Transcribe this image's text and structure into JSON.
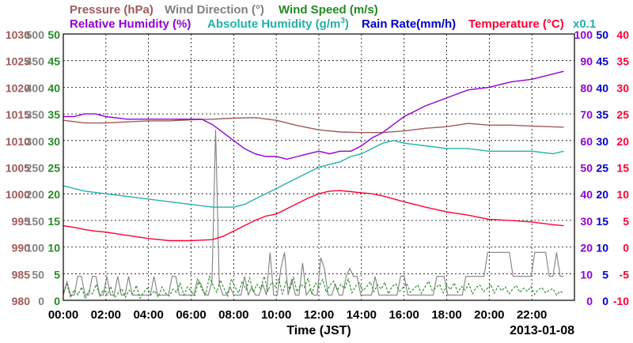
{
  "chart_data": {
    "type": "line",
    "date": "2013-01-08",
    "xlabel": "Time (JST)",
    "x_ticks": [
      "00:00",
      "02:00",
      "04:00",
      "06:00",
      "08:00",
      "10:00",
      "12:00",
      "14:00",
      "16:00",
      "18:00",
      "20:00",
      "22:00"
    ],
    "xlim_hours": [
      0,
      24
    ],
    "grid": true,
    "legend_row1": [
      {
        "key": "pressure",
        "label": "Pressure (hPa)",
        "color": "#a05a5a"
      },
      {
        "key": "wind_dir",
        "label": "Wind Direction (°)",
        "color": "#808080"
      },
      {
        "key": "wind_speed",
        "label": "Wind Speed (m/s)",
        "color": "#228b22"
      }
    ],
    "legend_row2": [
      {
        "key": "rh",
        "label": "Relative Humidity (%)",
        "color": "#9400d3"
      },
      {
        "key": "abs_hum",
        "label": "Absolute Humidity (g/m",
        "sup": "3",
        "suffix": ")",
        "color": "#20b2aa"
      },
      {
        "key": "rain",
        "label": "Rain Rate(mm/h)",
        "color": "#0000cd"
      },
      {
        "key": "temp",
        "label": "Temperature (°C)",
        "color": "#ff0033"
      }
    ],
    "abs_hum_scale_note": "x0.1",
    "axes": {
      "pressure": {
        "ticks": [
          "1030",
          "1025",
          "1020",
          "1015",
          "1010",
          "1005",
          "1000",
          "995",
          "990",
          "985",
          "980"
        ],
        "range": [
          980,
          1030
        ]
      },
      "wind_dir": {
        "ticks": [
          "500",
          "450",
          "400",
          "350",
          "300",
          "250",
          "200",
          "150",
          "100",
          "50",
          "0"
        ],
        "range": [
          0,
          500
        ]
      },
      "wind_speed": {
        "ticks": [
          "50",
          "45",
          "40",
          "35",
          "30",
          "25",
          "20",
          "15",
          "10",
          "5",
          "0"
        ],
        "range": [
          0,
          50
        ]
      },
      "rh": {
        "ticks": [
          "100",
          "90",
          "80",
          "70",
          "60",
          "50",
          "40",
          "30",
          "20",
          "10",
          "0"
        ],
        "range": [
          0,
          100
        ]
      },
      "rain": {
        "ticks": [
          "50",
          "45",
          "40",
          "35",
          "30",
          "25",
          "20",
          "15",
          "10",
          "5",
          "0"
        ],
        "range": [
          0,
          50
        ]
      },
      "temp": {
        "ticks": [
          "40",
          "35",
          "30",
          "25",
          "20",
          "15",
          "10",
          "5",
          "0",
          "-5",
          "-10"
        ],
        "range": [
          -10,
          40
        ]
      }
    },
    "series": [
      {
        "name": "Pressure (hPa)",
        "axis": "pressure",
        "color": "#a05a5a",
        "x": [
          0,
          1,
          2,
          3,
          4,
          5,
          6,
          7,
          8,
          9,
          10,
          11,
          12,
          13,
          14,
          15,
          16,
          17,
          18,
          19,
          20,
          21,
          22,
          23.5
        ],
        "y": [
          1013.8,
          1013.3,
          1013.3,
          1013.5,
          1013.7,
          1013.7,
          1013.9,
          1014.0,
          1014.2,
          1014.3,
          1013.8,
          1012.8,
          1012.0,
          1011.6,
          1011.5,
          1011.5,
          1011.8,
          1012.3,
          1012.6,
          1013.2,
          1012.9,
          1012.9,
          1012.7,
          1012.5
        ]
      },
      {
        "name": "Relative Humidity (%)",
        "axis": "rh",
        "color": "#9400d3",
        "x": [
          0,
          0.5,
          1,
          1.5,
          2,
          3,
          4,
          5,
          6,
          6.5,
          7,
          7.5,
          8,
          8.5,
          9,
          9.5,
          10,
          10.5,
          11,
          11.5,
          12,
          12.5,
          13,
          13.5,
          14,
          14.5,
          15,
          15.5,
          16,
          17,
          18,
          19,
          20,
          21,
          22,
          23,
          23.5
        ],
        "y": [
          69,
          69,
          70,
          70,
          69,
          68,
          68,
          68,
          68,
          68,
          66,
          63,
          60,
          57,
          55,
          54,
          54,
          53,
          54,
          55,
          56,
          55,
          56,
          56,
          58,
          61,
          63,
          66,
          69,
          73,
          76,
          79,
          80,
          82,
          83,
          85,
          86
        ]
      },
      {
        "name": "Absolute Humidity (g/m3) x0.1",
        "axis": "rh",
        "color": "#20b2aa",
        "x": [
          0,
          0.5,
          1,
          2,
          3,
          4,
          5,
          6,
          7,
          8,
          8.5,
          9,
          9.5,
          10,
          10.5,
          11,
          11.5,
          12,
          12.5,
          13,
          13.5,
          14,
          14.5,
          15,
          15.5,
          16,
          17,
          18,
          19,
          20,
          21,
          22,
          23,
          23.5
        ],
        "y": [
          43,
          42,
          41,
          40,
          39,
          38,
          37,
          36,
          35,
          35,
          36,
          38,
          40,
          42,
          44,
          46,
          48,
          50,
          51,
          52,
          54,
          55,
          57,
          59,
          60,
          59,
          58,
          57,
          57,
          56,
          56,
          56,
          55,
          56
        ]
      },
      {
        "name": "Temperature (°C)",
        "axis": "temp",
        "color": "#ff0033",
        "x": [
          0,
          0.5,
          1,
          1.5,
          2,
          3,
          4,
          5,
          6,
          7,
          7.5,
          8,
          8.5,
          9,
          9.5,
          10,
          10.5,
          11,
          11.5,
          12,
          12.5,
          13,
          13.5,
          14,
          14.5,
          15,
          16,
          17,
          18,
          19,
          20,
          21,
          22,
          23,
          23.5
        ],
        "y": [
          4,
          3.7,
          3.3,
          3,
          2.8,
          2.2,
          1.6,
          1.2,
          1.2,
          1.4,
          2,
          3,
          4,
          5,
          5.8,
          6.2,
          7.2,
          8.2,
          9.2,
          10,
          10.5,
          10.6,
          10.4,
          10.2,
          10,
          9.6,
          8.5,
          7.5,
          6.6,
          6,
          5.2,
          5,
          4.7,
          4.2,
          4
        ]
      }
    ],
    "spiky_series": [
      {
        "name": "Wind Direction (°)",
        "axis": "wind_dir",
        "color": "#808080",
        "x_start": 0,
        "x_end": 23.5,
        "y": [
          10,
          35,
          10,
          10,
          45,
          45,
          10,
          10,
          45,
          45,
          10,
          10,
          45,
          10,
          10,
          45,
          10,
          10,
          45,
          10,
          10,
          10,
          10,
          10,
          10,
          45,
          10,
          10,
          10,
          10,
          45,
          45,
          10,
          10,
          10,
          10,
          10,
          40,
          30,
          10,
          10,
          35,
          320,
          30,
          10,
          10,
          25,
          10,
          10,
          10,
          45,
          10,
          25,
          10,
          10,
          30,
          10,
          90,
          10,
          10,
          60,
          90,
          10,
          40,
          10,
          10,
          70,
          10,
          20,
          10,
          10,
          80,
          60,
          10,
          10,
          30,
          10,
          10,
          45,
          60,
          45,
          45,
          10,
          10,
          10,
          10,
          45,
          10,
          10,
          10,
          10,
          10,
          10,
          45,
          45,
          10,
          10,
          10,
          10,
          10,
          10,
          10,
          10,
          45,
          45,
          45,
          10,
          10,
          10,
          10,
          10,
          45,
          45,
          45,
          45,
          45,
          45,
          90,
          90,
          90,
          90,
          90,
          90,
          90,
          45,
          45,
          45,
          45,
          45,
          45,
          90,
          90,
          90,
          90,
          45,
          45,
          90,
          45,
          45
        ]
      },
      {
        "name": "Wind Speed (m/s)",
        "axis": "wind_speed",
        "color": "#228b22",
        "style": "dashed",
        "x_start": 0,
        "x_end": 23.5,
        "y": [
          1.5,
          3,
          0.5,
          2,
          1,
          2.5,
          0.3,
          1.8,
          1.2,
          3,
          0.8,
          2,
          1,
          2.6,
          0.5,
          1.4,
          2.2,
          0.6,
          1.9,
          1.2,
          2.8,
          0.4,
          1.5,
          2.3,
          1,
          1.8,
          0.6,
          2.5,
          1.3,
          0.8,
          2.1,
          1.5,
          3.2,
          1,
          2.5,
          1.7,
          0.9,
          3.5,
          2,
          1.2,
          4.5,
          2.8,
          1.5,
          3.8,
          2.2,
          0.8,
          4,
          2.5,
          1.4,
          3.6,
          2,
          4.2,
          1.5,
          3,
          2.2,
          4.5,
          1.8,
          3.4,
          2.6,
          4,
          1.2,
          3.5,
          2,
          4.3,
          1.6,
          3,
          2.4,
          4.1,
          1.3,
          3.2,
          2.5,
          3.9,
          1.5,
          2.8,
          3.6,
          1.9,
          3,
          2.2,
          4,
          1.4,
          2.7,
          3.3,
          1.8,
          2.5,
          3.5,
          1.6,
          2.9,
          2.1,
          3.4,
          1.2,
          2.6,
          3.1,
          1.7,
          2.4,
          3.2,
          1.5,
          2.2,
          2.9,
          1.3,
          2.5,
          3.6,
          1.8,
          2.4,
          3,
          1.4,
          2.8,
          2,
          3.3,
          1.5,
          2.6,
          1.9,
          3.1,
          1.2,
          2.4,
          2.9,
          1.6,
          2.2,
          3,
          1.3,
          2.7,
          1.8,
          2.5,
          1.2,
          2.1,
          2.8,
          1.5,
          2.3,
          1.7,
          2.6,
          1.1,
          2,
          2.4,
          1.4,
          1.9,
          2.2,
          1,
          1.7,
          1.3
        ]
      },
      {
        "name": "Rain Rate(mm/h)",
        "axis": "rain",
        "color": "#0000cd",
        "x_start": 0,
        "x_end": 23.5,
        "y": [
          0,
          0
        ]
      }
    ]
  }
}
